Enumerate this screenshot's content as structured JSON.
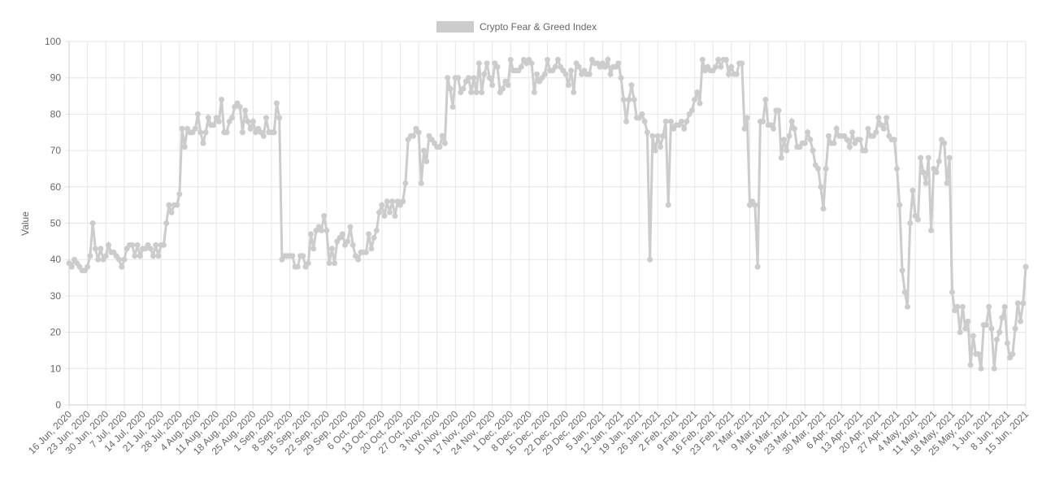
{
  "chart_data": {
    "type": "line",
    "y_label": "Value",
    "grid": true,
    "legend": "top",
    "categories": [
      "16 Jun, 2020",
      null,
      null,
      null,
      null,
      null,
      null,
      "23 Jun, 2020",
      null,
      null,
      null,
      null,
      null,
      null,
      "30 Jun, 2020",
      null,
      null,
      null,
      null,
      null,
      null,
      "7 Jul, 2020",
      null,
      null,
      null,
      null,
      null,
      null,
      "14 Jul, 2020",
      null,
      null,
      null,
      null,
      null,
      null,
      "21 Jul, 2020",
      null,
      null,
      null,
      null,
      null,
      null,
      "28 Jul, 2020",
      null,
      null,
      null,
      null,
      null,
      null,
      "4 Aug, 2020",
      null,
      null,
      null,
      null,
      null,
      null,
      "11 Aug, 2020",
      null,
      null,
      null,
      null,
      null,
      null,
      "18 Aug, 2020",
      null,
      null,
      null,
      null,
      null,
      null,
      "25 Aug, 2020",
      null,
      null,
      null,
      null,
      null,
      null,
      "1 Sep, 2020",
      null,
      null,
      null,
      null,
      null,
      null,
      "8 Sep, 2020",
      null,
      null,
      null,
      null,
      null,
      null,
      "15 Sep, 2020",
      null,
      null,
      null,
      null,
      null,
      null,
      "22 Sep, 2020",
      null,
      null,
      null,
      null,
      null,
      null,
      "29 Sep, 2020",
      null,
      null,
      null,
      null,
      null,
      null,
      "6 Oct, 2020",
      null,
      null,
      null,
      null,
      null,
      null,
      "13 Oct, 2020",
      null,
      null,
      null,
      null,
      null,
      null,
      "20 Oct, 2020",
      null,
      null,
      null,
      null,
      null,
      null,
      "27 Oct, 2020",
      null,
      null,
      null,
      null,
      null,
      null,
      "3 Nov, 2020",
      null,
      null,
      null,
      null,
      null,
      null,
      "10 Nov, 2020",
      null,
      null,
      null,
      null,
      null,
      null,
      "17 Nov, 2020",
      null,
      null,
      null,
      null,
      null,
      null,
      "24 Nov, 2020",
      null,
      null,
      null,
      null,
      null,
      null,
      "1 Dec, 2020",
      null,
      null,
      null,
      null,
      null,
      null,
      "8 Dec, 2020",
      null,
      null,
      null,
      null,
      null,
      null,
      "15 Dec, 2020",
      null,
      null,
      null,
      null,
      null,
      null,
      "22 Dec, 2020",
      null,
      null,
      null,
      null,
      null,
      null,
      "29 Dec, 2020",
      null,
      null,
      null,
      null,
      null,
      null,
      "5 Jan, 2021",
      null,
      null,
      null,
      null,
      null,
      null,
      "12 Jan, 2021",
      null,
      null,
      null,
      null,
      null,
      null,
      "19 Jan, 2021",
      null,
      null,
      null,
      null,
      null,
      null,
      "26 Jan, 2021",
      null,
      null,
      null,
      null,
      null,
      null,
      "2 Feb, 2021",
      null,
      null,
      null,
      null,
      null,
      null,
      "9 Feb, 2021",
      null,
      null,
      null,
      null,
      null,
      null,
      "16 Feb, 2021",
      null,
      null,
      null,
      null,
      null,
      null,
      "23 Feb, 2021",
      null,
      null,
      null,
      null,
      null,
      null,
      "2 Mar, 2021",
      null,
      null,
      null,
      null,
      null,
      null,
      "9 Mar, 2021",
      null,
      null,
      null,
      null,
      null,
      null,
      "16 Mar, 2021",
      null,
      null,
      null,
      null,
      null,
      null,
      "23 Mar, 2021",
      null,
      null,
      null,
      null,
      null,
      null,
      "30 Mar, 2021",
      null,
      null,
      null,
      null,
      null,
      null,
      "6 Apr, 2021",
      null,
      null,
      null,
      null,
      null,
      null,
      "13 Apr, 2021",
      null,
      null,
      null,
      null,
      null,
      null,
      "20 Apr, 2021",
      null,
      null,
      null,
      null,
      null,
      null,
      "27 Apr, 2021",
      null,
      null,
      null,
      null,
      null,
      null,
      "4 May, 2021",
      null,
      null,
      null,
      null,
      null,
      null,
      "11 May, 2021",
      null,
      null,
      null,
      null,
      null,
      null,
      "18 May, 2021",
      null,
      null,
      null,
      null,
      null,
      null,
      "25 May, 2021",
      null,
      null,
      null,
      null,
      null,
      null,
      "1 Jun, 2021",
      null,
      null,
      null,
      null,
      null,
      null,
      "8 Jun, 2021",
      null,
      null,
      null,
      null,
      null,
      null,
      "15 Jun, 2021"
    ],
    "series": [
      {
        "name": "Crypto Fear & Greed Index",
        "color": "#cccccc",
        "values": [
          39,
          38,
          40,
          39,
          38,
          37,
          37,
          38,
          41,
          50,
          43,
          40,
          43,
          40,
          41,
          44,
          42,
          42,
          41,
          40,
          38,
          40,
          43,
          44,
          44,
          41,
          44,
          41,
          43,
          43,
          44,
          43,
          41,
          44,
          41,
          44,
          44,
          50,
          55,
          53,
          55,
          55,
          58,
          76,
          71,
          76,
          75,
          75,
          76,
          80,
          75,
          72,
          75,
          79,
          77,
          77,
          79,
          78,
          84,
          75,
          75,
          78,
          79,
          82,
          83,
          82,
          75,
          81,
          78,
          76,
          78,
          75,
          76,
          75,
          74,
          79,
          75,
          75,
          75,
          83,
          79,
          40,
          41,
          41,
          41,
          41,
          38,
          38,
          41,
          41,
          38,
          39,
          47,
          43,
          48,
          49,
          48,
          52,
          48,
          39,
          43,
          39,
          45,
          46,
          47,
          44,
          45,
          49,
          44,
          41,
          40,
          42,
          42,
          42,
          47,
          43,
          46,
          48,
          53,
          55,
          52,
          56,
          53,
          56,
          52,
          56,
          55,
          56,
          61,
          73,
          74,
          74,
          76,
          75,
          61,
          70,
          67,
          74,
          73,
          72,
          71,
          71,
          74,
          72,
          90,
          87,
          82,
          90,
          90,
          86,
          87,
          89,
          90,
          86,
          90,
          86,
          94,
          86,
          91,
          94,
          90,
          88,
          94,
          93,
          86,
          87,
          89,
          88,
          95,
          92,
          92,
          92,
          93,
          95,
          94,
          95,
          94,
          86,
          91,
          89,
          90,
          91,
          95,
          92,
          92,
          93,
          95,
          93,
          92,
          91,
          88,
          92,
          86,
          94,
          93,
          91,
          92,
          91,
          91,
          95,
          94,
          94,
          93,
          94,
          93,
          95,
          91,
          93,
          93,
          94,
          90,
          84,
          78,
          84,
          88,
          84,
          79,
          79,
          80,
          78,
          75,
          40,
          74,
          70,
          74,
          71,
          74,
          78,
          55,
          78,
          76,
          77,
          77,
          78,
          76,
          78,
          80,
          81,
          84,
          86,
          83,
          95,
          92,
          93,
          92,
          92,
          93,
          95,
          93,
          95,
          95,
          91,
          93,
          91,
          91,
          94,
          94,
          76,
          79,
          55,
          56,
          55,
          38,
          78,
          78,
          84,
          77,
          77,
          76,
          81,
          81,
          68,
          73,
          70,
          74,
          78,
          76,
          71,
          71,
          72,
          72,
          75,
          73,
          70,
          66,
          65,
          60,
          54,
          65,
          74,
          72,
          72,
          76,
          74,
          74,
          74,
          73,
          71,
          75,
          72,
          73,
          73,
          70,
          70,
          76,
          74,
          74,
          75,
          79,
          77,
          76,
          79,
          74,
          73,
          73,
          65,
          55,
          37,
          31,
          27,
          50,
          59,
          52,
          51,
          68,
          64,
          61,
          68,
          48,
          65,
          64,
          67,
          73,
          72,
          61,
          68,
          31,
          26,
          27,
          20,
          27,
          21,
          23,
          11,
          19,
          14,
          14,
          10,
          22,
          22,
          27,
          21,
          10,
          18,
          20,
          24,
          27,
          17,
          13,
          14,
          21,
          28,
          23,
          28,
          38
        ]
      }
    ],
    "ylim": [
      0,
      100
    ],
    "yticks": [
      0,
      10,
      20,
      30,
      40,
      50,
      60,
      70,
      80,
      90,
      100
    ]
  }
}
